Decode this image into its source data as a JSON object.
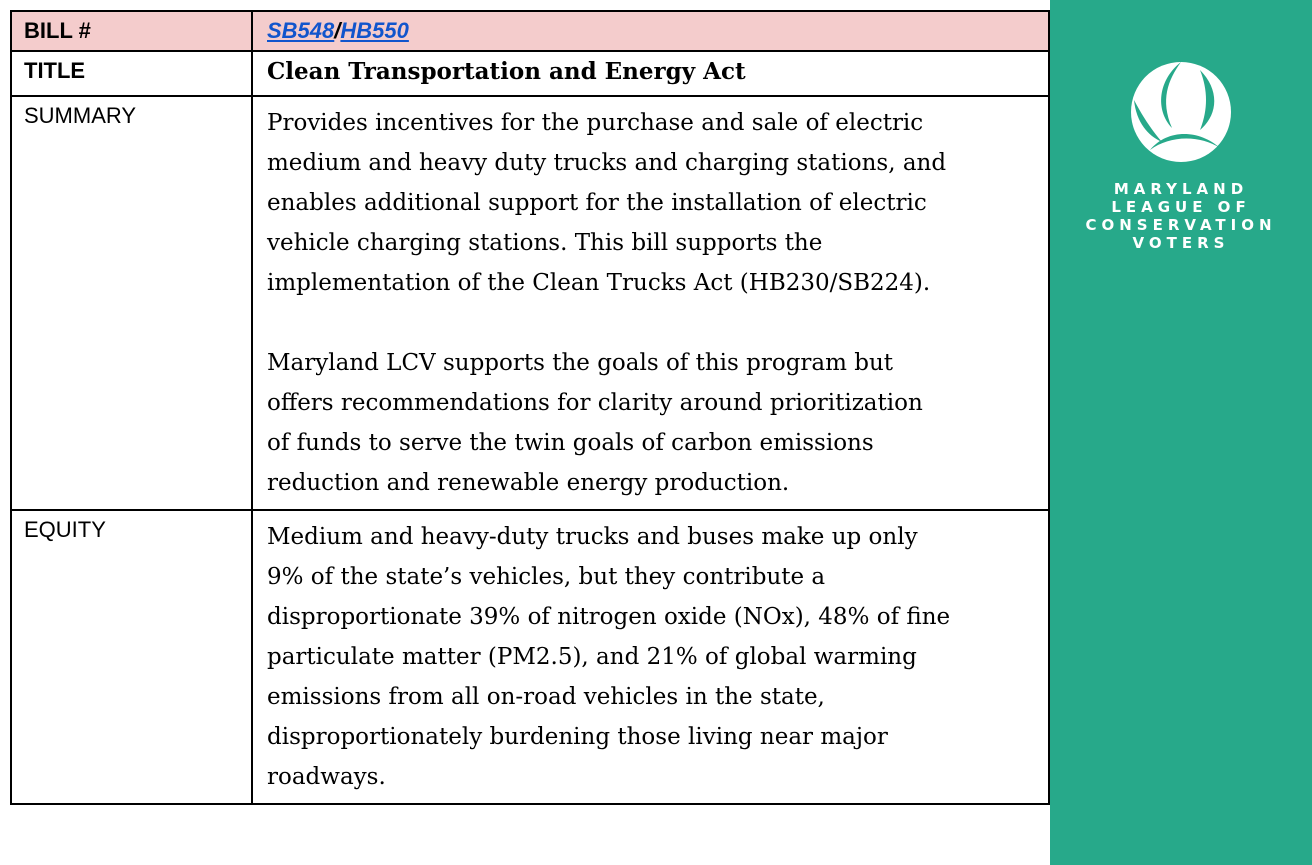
{
  "table": {
    "bill": {
      "label": "BILL #",
      "links": [
        "SB548",
        "HB550"
      ],
      "separator": "/"
    },
    "title": {
      "label": "TITLE",
      "text": "Clean Transportation and Energy Act"
    },
    "summary": {
      "label": "SUMMARY",
      "paragraphs": [
        [
          "Provides incentives for the purchase and sale of electric",
          "medium and heavy duty trucks and charging stations, and",
          "enables additional support for the installation of electric",
          "vehicle charging stations.  This bill supports the",
          "implementation of the Clean Trucks Act (HB230/SB224)."
        ],
        [
          "Maryland LCV supports the goals of this program but",
          "offers recommendations for clarity around prioritization",
          "of funds to serve the twin goals of carbon emissions",
          "reduction and renewable energy production."
        ]
      ]
    },
    "equity": {
      "label": "EQUITY",
      "lines": [
        "Medium and heavy-duty trucks and buses make up only",
        "9% of the state’s vehicles, but they contribute a",
        "disproportionate 39% of nitrogen oxide (NOx), 48% of fine",
        "particulate matter (PM2.5), and 21% of global warming",
        "emissions from all on-road vehicles in the state,",
        "disproportionately burdening those living near major",
        "roadways."
      ]
    }
  },
  "logo": {
    "lines": [
      "MARYLAND",
      "LEAGUE OF",
      "CONSERVATION",
      "VOTERS"
    ]
  }
}
